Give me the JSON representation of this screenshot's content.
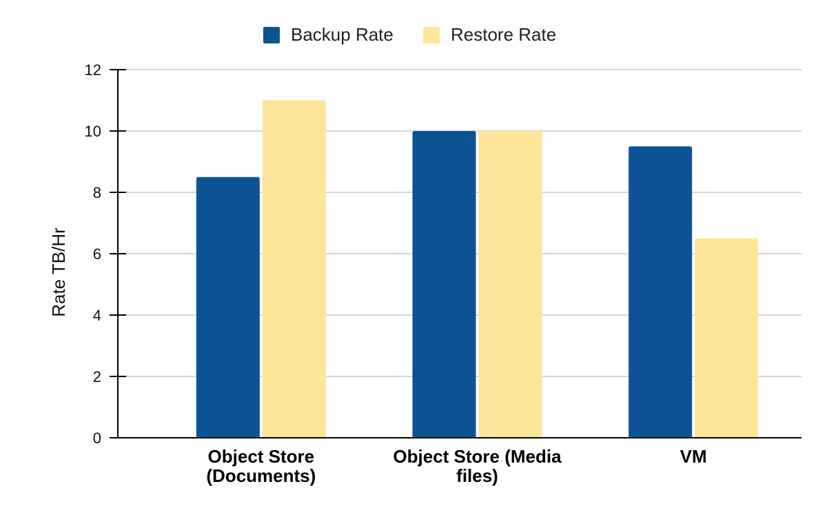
{
  "chart_data": {
    "type": "bar",
    "title": "",
    "xlabel": "",
    "ylabel": "Rate TB/Hr",
    "categories": [
      [
        "Object Store",
        "(Documents)"
      ],
      [
        "Object Store (Media",
        "files)"
      ],
      [
        "VM"
      ]
    ],
    "series": [
      {
        "name": "Backup Rate",
        "color": "#0d5394",
        "values": [
          8.5,
          10,
          9.5
        ]
      },
      {
        "name": "Restore Rate",
        "color": "#fde599",
        "values": [
          11,
          10,
          6.5
        ]
      }
    ],
    "ylim": [
      0,
      12
    ],
    "yticks": [
      0,
      2,
      4,
      6,
      8,
      10,
      12
    ],
    "grid": true,
    "legend": "top-center"
  }
}
